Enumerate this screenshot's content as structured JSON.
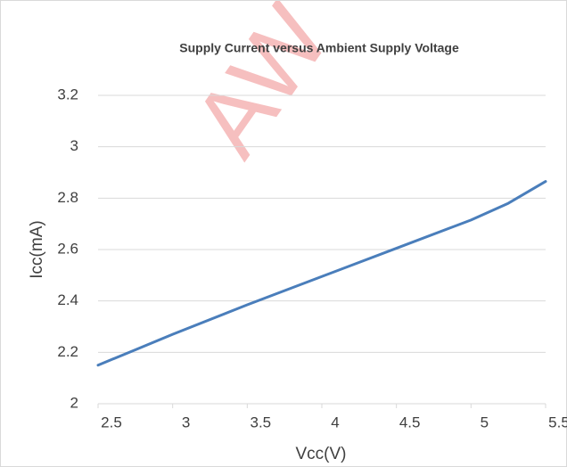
{
  "chart_data": {
    "type": "line",
    "title": "Supply Current versus Ambient Supply Voltage",
    "watermark": "AW",
    "x_label": "Vcc(V)",
    "y_label": "Icc(mA)",
    "x": [
      2.5,
      2.75,
      3,
      3.5,
      4,
      4.5,
      5,
      5.25,
      5.5
    ],
    "series": [
      {
        "name": "Icc",
        "color": "#4a7ebb",
        "values": [
          2.15,
          2.21,
          2.27,
          2.385,
          2.495,
          2.605,
          2.715,
          2.78,
          2.865
        ]
      }
    ],
    "xlim": [
      2.5,
      5.5
    ],
    "xticks": [
      2.5,
      3,
      3.5,
      4,
      4.5,
      5,
      5.5
    ],
    "ylim": [
      2,
      3.2
    ],
    "yticks": [
      2,
      2.2,
      2.4,
      2.6,
      2.8,
      3,
      3.2
    ],
    "grid": true
  }
}
